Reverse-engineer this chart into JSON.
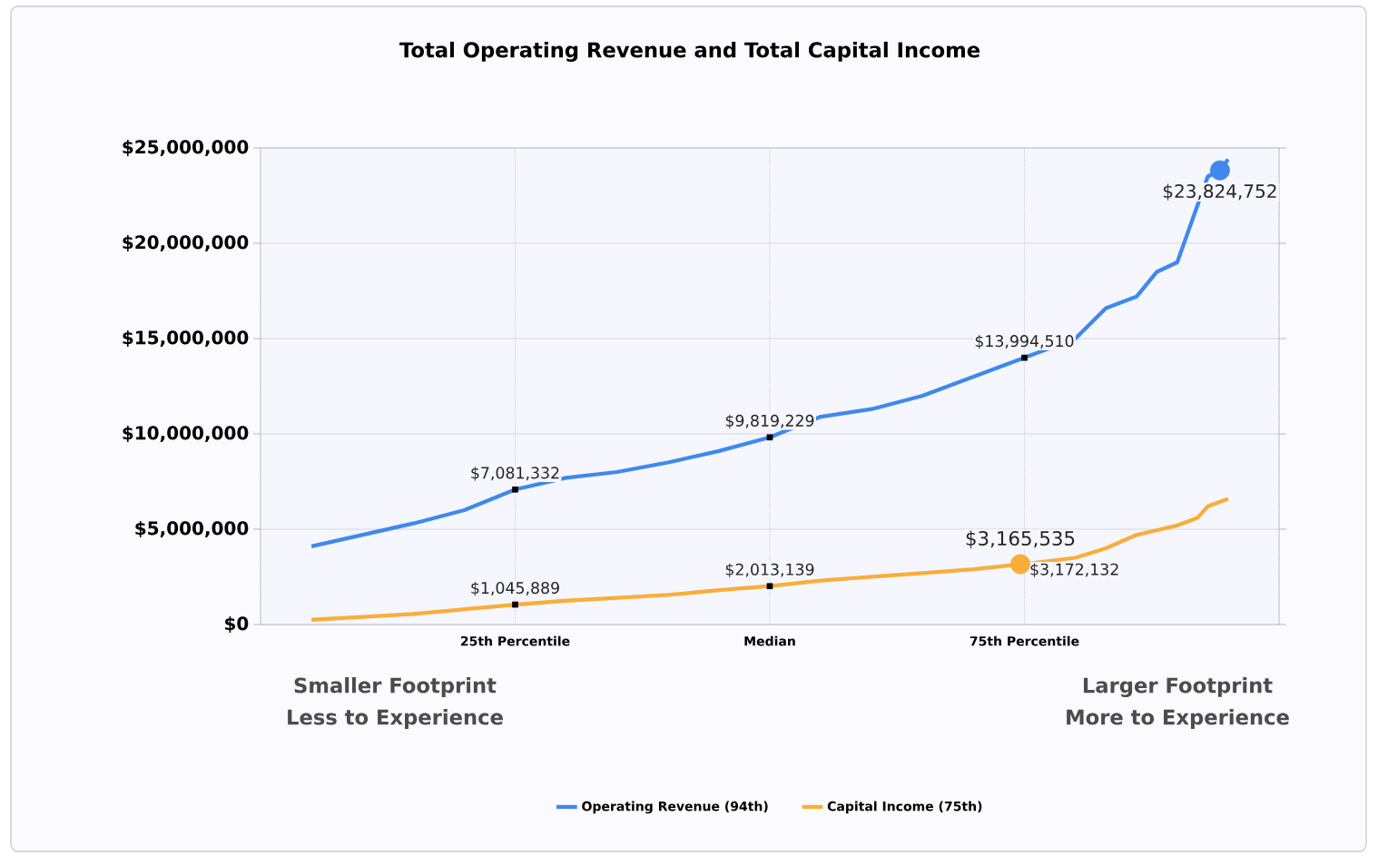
{
  "chart_data": {
    "type": "line",
    "title": "Total Operating Revenue and Total Capital Income",
    "xlim": [
      0,
      100
    ],
    "xticks": [
      {
        "value": 0,
        "label": null
      },
      {
        "value": 25,
        "label": "25th Percentile"
      },
      {
        "value": 50,
        "label": "Median"
      },
      {
        "value": 75,
        "label": "75th Percentile"
      },
      {
        "value": 100,
        "label": null
      }
    ],
    "ylim": [
      0,
      25000000
    ],
    "yticks": [
      {
        "value": 0,
        "label": "$0"
      },
      {
        "value": 5000000,
        "label": "$5,000,000"
      },
      {
        "value": 10000000,
        "label": "$10,000,000"
      },
      {
        "value": 15000000,
        "label": "$15,000,000"
      },
      {
        "value": 20000000,
        "label": "$20,000,000"
      },
      {
        "value": 25000000,
        "label": "$25,000,000"
      }
    ],
    "grid": true,
    "legend": "bottom",
    "series": [
      {
        "name": "Operating Revenue   (94th)",
        "color": "#3f88ee",
        "x": [
          5,
          10,
          15,
          20,
          25,
          30,
          35,
          40,
          45,
          50,
          55,
          60,
          65,
          70,
          75,
          80,
          83,
          86,
          88,
          90,
          91,
          92,
          93,
          94.2,
          95
        ],
        "values": [
          4100000,
          4700000,
          5300000,
          6000000,
          7081332,
          7700000,
          8000000,
          8500000,
          9100000,
          9819229,
          10900000,
          11300000,
          12000000,
          13000000,
          13994510,
          15000000,
          16600000,
          17200000,
          18500000,
          19000000,
          20500000,
          22000000,
          23500000,
          23824752,
          24400000
        ]
      },
      {
        "name": "Capital Income   (75th)",
        "color": "#f9ae3a",
        "x": [
          5,
          10,
          15,
          20,
          25,
          30,
          35,
          40,
          45,
          50,
          55,
          60,
          65,
          70,
          74.6,
          75,
          80,
          83,
          86,
          90,
          92,
          93,
          95
        ],
        "values": [
          250000,
          400000,
          550000,
          800000,
          1045889,
          1250000,
          1400000,
          1550000,
          1800000,
          2013139,
          2300000,
          2500000,
          2700000,
          2900000,
          3165535,
          3172132,
          3500000,
          4000000,
          4700000,
          5200000,
          5600000,
          6200000,
          6600000
        ]
      },
      {
        "type": "scatter",
        "color": "#3f88ee",
        "marker": "circle",
        "x": [
          94.2
        ],
        "values": [
          23824752
        ]
      },
      {
        "type": "scatter",
        "color": "#f9ae3a",
        "marker": "circle",
        "x": [
          74.6
        ],
        "values": [
          3165535
        ]
      }
    ],
    "annotations": [
      {
        "text": "$7,081,332",
        "x": 25,
        "y": 7081332
      },
      {
        "text": "$9,819,229",
        "x": 50,
        "y": 9819229
      },
      {
        "text": "$13,994,510",
        "x": 75,
        "y": 13994510
      },
      {
        "text": "$23,824,752",
        "x": 94.2,
        "y": 23824752
      },
      {
        "text": "$1,045,889",
        "x": 25,
        "y": 1045889
      },
      {
        "text": "$2,013,139",
        "x": 50,
        "y": 2013139
      },
      {
        "text": "$3,165,535",
        "x": 74.6,
        "y": 3165535
      },
      {
        "text": "$3,172,132",
        "x": 75,
        "y": 3172132
      },
      "Smaller Footprint",
      "Less to Experience",
      "Larger Footprint",
      "More to Experience"
    ]
  }
}
